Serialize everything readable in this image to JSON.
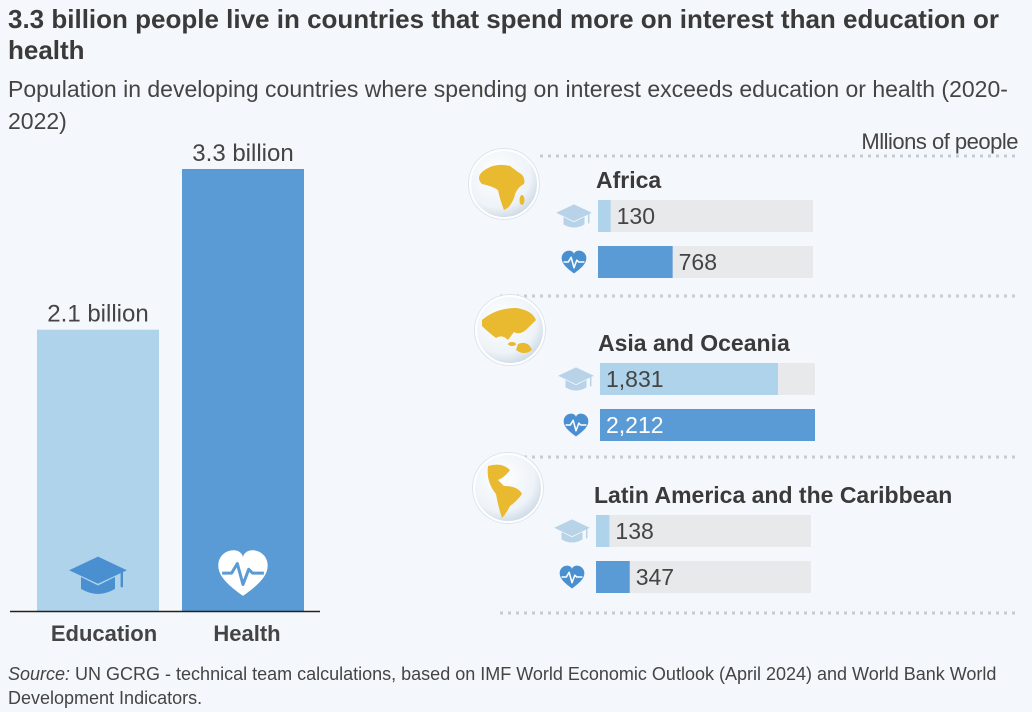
{
  "title": "3.3 billion people live in countries that spend more on interest than education or health",
  "subtitle": "Population in developing countries where spending on interest exceeds education or health (2020-2022)",
  "units": "Mllions of people",
  "source": {
    "prefix": "Source:",
    "text": " UN GCRG - technical team calculations, based on IMF World Economic Outlook (April 2024) and World Bank World Development Indicators."
  },
  "colors": {
    "education": "#aed3ea",
    "health": "#5b9bd5",
    "track": "#e8e9ea",
    "globe": "#e9b92f"
  },
  "chart_data": [
    {
      "type": "bar",
      "categories": [
        "Education",
        "Health"
      ],
      "values": [
        2.1,
        3.3
      ],
      "value_labels": [
        "2.1 billion",
        "3.3 billion"
      ],
      "icons": [
        "graduation-cap-icon",
        "heart-pulse-icon"
      ],
      "unit": "billion",
      "ylim": [
        0,
        3.3
      ],
      "grid": false,
      "legend": "none"
    },
    {
      "type": "bar",
      "orientation": "horizontal",
      "unit": "Mllions of people",
      "xlim": [
        0,
        2212
      ],
      "groups": [
        {
          "name": "Africa",
          "globe_icon": "globe-africa-icon",
          "bars": [
            {
              "category": "Education",
              "icon": "graduation-cap-icon",
              "value": 130,
              "label": "130"
            },
            {
              "category": "Health",
              "icon": "heart-pulse-icon",
              "value": 768,
              "label": "768"
            }
          ]
        },
        {
          "name": "Asia and Oceania",
          "globe_icon": "globe-asia-icon",
          "bars": [
            {
              "category": "Education",
              "icon": "graduation-cap-icon",
              "value": 1831,
              "label": "1,831"
            },
            {
              "category": "Health",
              "icon": "heart-pulse-icon",
              "value": 2212,
              "label": "2,212"
            }
          ]
        },
        {
          "name": "Latin America and the Caribbean",
          "globe_icon": "globe-americas-icon",
          "bars": [
            {
              "category": "Education",
              "icon": "graduation-cap-icon",
              "value": 138,
              "label": "138"
            },
            {
              "category": "Health",
              "icon": "heart-pulse-icon",
              "value": 347,
              "label": "347"
            }
          ]
        }
      ]
    }
  ]
}
